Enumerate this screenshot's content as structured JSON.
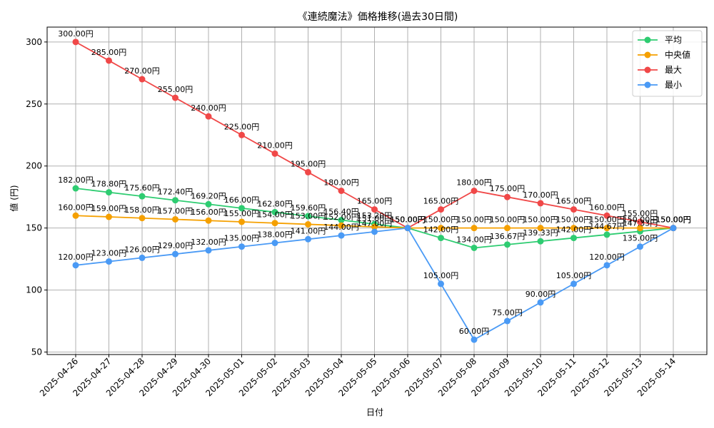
{
  "chart_data": {
    "type": "line",
    "title": "《連続魔法》価格推移(過去30日間)",
    "xlabel": "日付",
    "ylabel": "値 (円)",
    "ylim": [
      48,
      312
    ],
    "yticks": [
      50,
      100,
      150,
      200,
      250,
      300
    ],
    "grid": true,
    "legend_position": "top-right",
    "label_suffix": "円",
    "categories": [
      "2025-04-26",
      "2025-04-27",
      "2025-04-28",
      "2025-04-29",
      "2025-04-30",
      "2025-05-01",
      "2025-05-02",
      "2025-05-03",
      "2025-05-04",
      "2025-05-05",
      "2025-05-06",
      "2025-05-07",
      "2025-05-08",
      "2025-05-09",
      "2025-05-10",
      "2025-05-11",
      "2025-05-12",
      "2025-05-13",
      "2025-05-14"
    ],
    "series": [
      {
        "name": "平均",
        "color": "#2ecc71",
        "values": [
          182.0,
          178.8,
          175.6,
          172.4,
          169.2,
          166.0,
          162.8,
          159.6,
          156.4,
          153.2,
          150.0,
          142.0,
          134.0,
          136.67,
          139.33,
          142.0,
          144.67,
          147.33,
          150.0
        ]
      },
      {
        "name": "中央値",
        "color": "#f5a000",
        "values": [
          160.0,
          159.0,
          158.0,
          157.0,
          156.0,
          155.0,
          154.0,
          153.0,
          152.0,
          151.0,
          150.0,
          150.0,
          150.0,
          150.0,
          150.0,
          150.0,
          150.0,
          150.0,
          150.0
        ]
      },
      {
        "name": "最大",
        "color": "#f04848",
        "values": [
          300.0,
          285.0,
          270.0,
          255.0,
          240.0,
          225.0,
          210.0,
          195.0,
          180.0,
          165.0,
          150.0,
          165.0,
          180.0,
          175.0,
          170.0,
          165.0,
          160.0,
          155.0,
          150.0
        ]
      },
      {
        "name": "最小",
        "color": "#4a9af5",
        "values": [
          120.0,
          123.0,
          126.0,
          129.0,
          132.0,
          135.0,
          138.0,
          141.0,
          144.0,
          147.0,
          150.0,
          105.0,
          60.0,
          75.0,
          90.0,
          105.0,
          120.0,
          135.0,
          150.0
        ]
      }
    ]
  }
}
